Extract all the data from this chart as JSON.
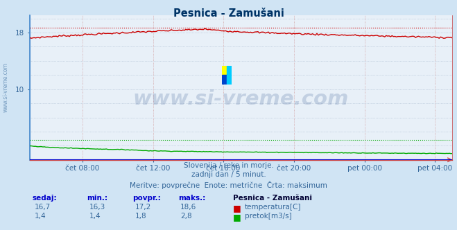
{
  "title": "Pesnica - Zamušani",
  "bg_color": "#d0e4f4",
  "plot_bg_color": "#e8f0f8",
  "grid_h_color": "#aabbd0",
  "grid_v_color": "#cc8888",
  "x_labels": [
    "čet 08:00",
    "čet 12:00",
    "čet 16:00",
    "čet 20:00",
    "pet 00:00",
    "pet 04:00"
  ],
  "x_tick_positions": [
    0.125,
    0.292,
    0.458,
    0.625,
    0.792,
    0.958
  ],
  "y_tick_positions": [
    10,
    18
  ],
  "y_all_ticks": [
    0,
    2,
    4,
    6,
    8,
    10,
    12,
    14,
    16,
    18,
    20
  ],
  "ylim": [
    0,
    20.5
  ],
  "temp_color": "#cc0000",
  "flow_color": "#00aa00",
  "height_color": "#0000cc",
  "watermark_text": "www.si-vreme.com",
  "watermark_color": "#1a4080",
  "watermark_alpha": 0.18,
  "subtitle1": "Slovenija / reke in morje.",
  "subtitle2": "zadnji dan / 5 minut.",
  "subtitle3": "Meritve: povprečne  Enote: metrične  Črta: maksimum",
  "legend_header": "Pesnica - Zamušani",
  "legend_items": [
    {
      "label": "temperatura[C]",
      "color": "#cc0000"
    },
    {
      "label": "pretok[m3/s]",
      "color": "#00aa00"
    }
  ],
  "table_headers": [
    "sedaj:",
    "min.:",
    "povpr.:",
    "maks.:"
  ],
  "table_data": [
    [
      "16,7",
      "16,3",
      "17,2",
      "18,6"
    ],
    [
      "1,4",
      "1,4",
      "1,8",
      "2,8"
    ]
  ],
  "temp_min": 16.3,
  "temp_max": 18.6,
  "flow_min": 1.4,
  "flow_max": 2.8,
  "n_points": 288,
  "logo_colors": {
    "top_left": "#ffff00",
    "top_right": "#00ccff",
    "bottom_left": "#0044cc",
    "bottom_right": "#00ccff"
  }
}
